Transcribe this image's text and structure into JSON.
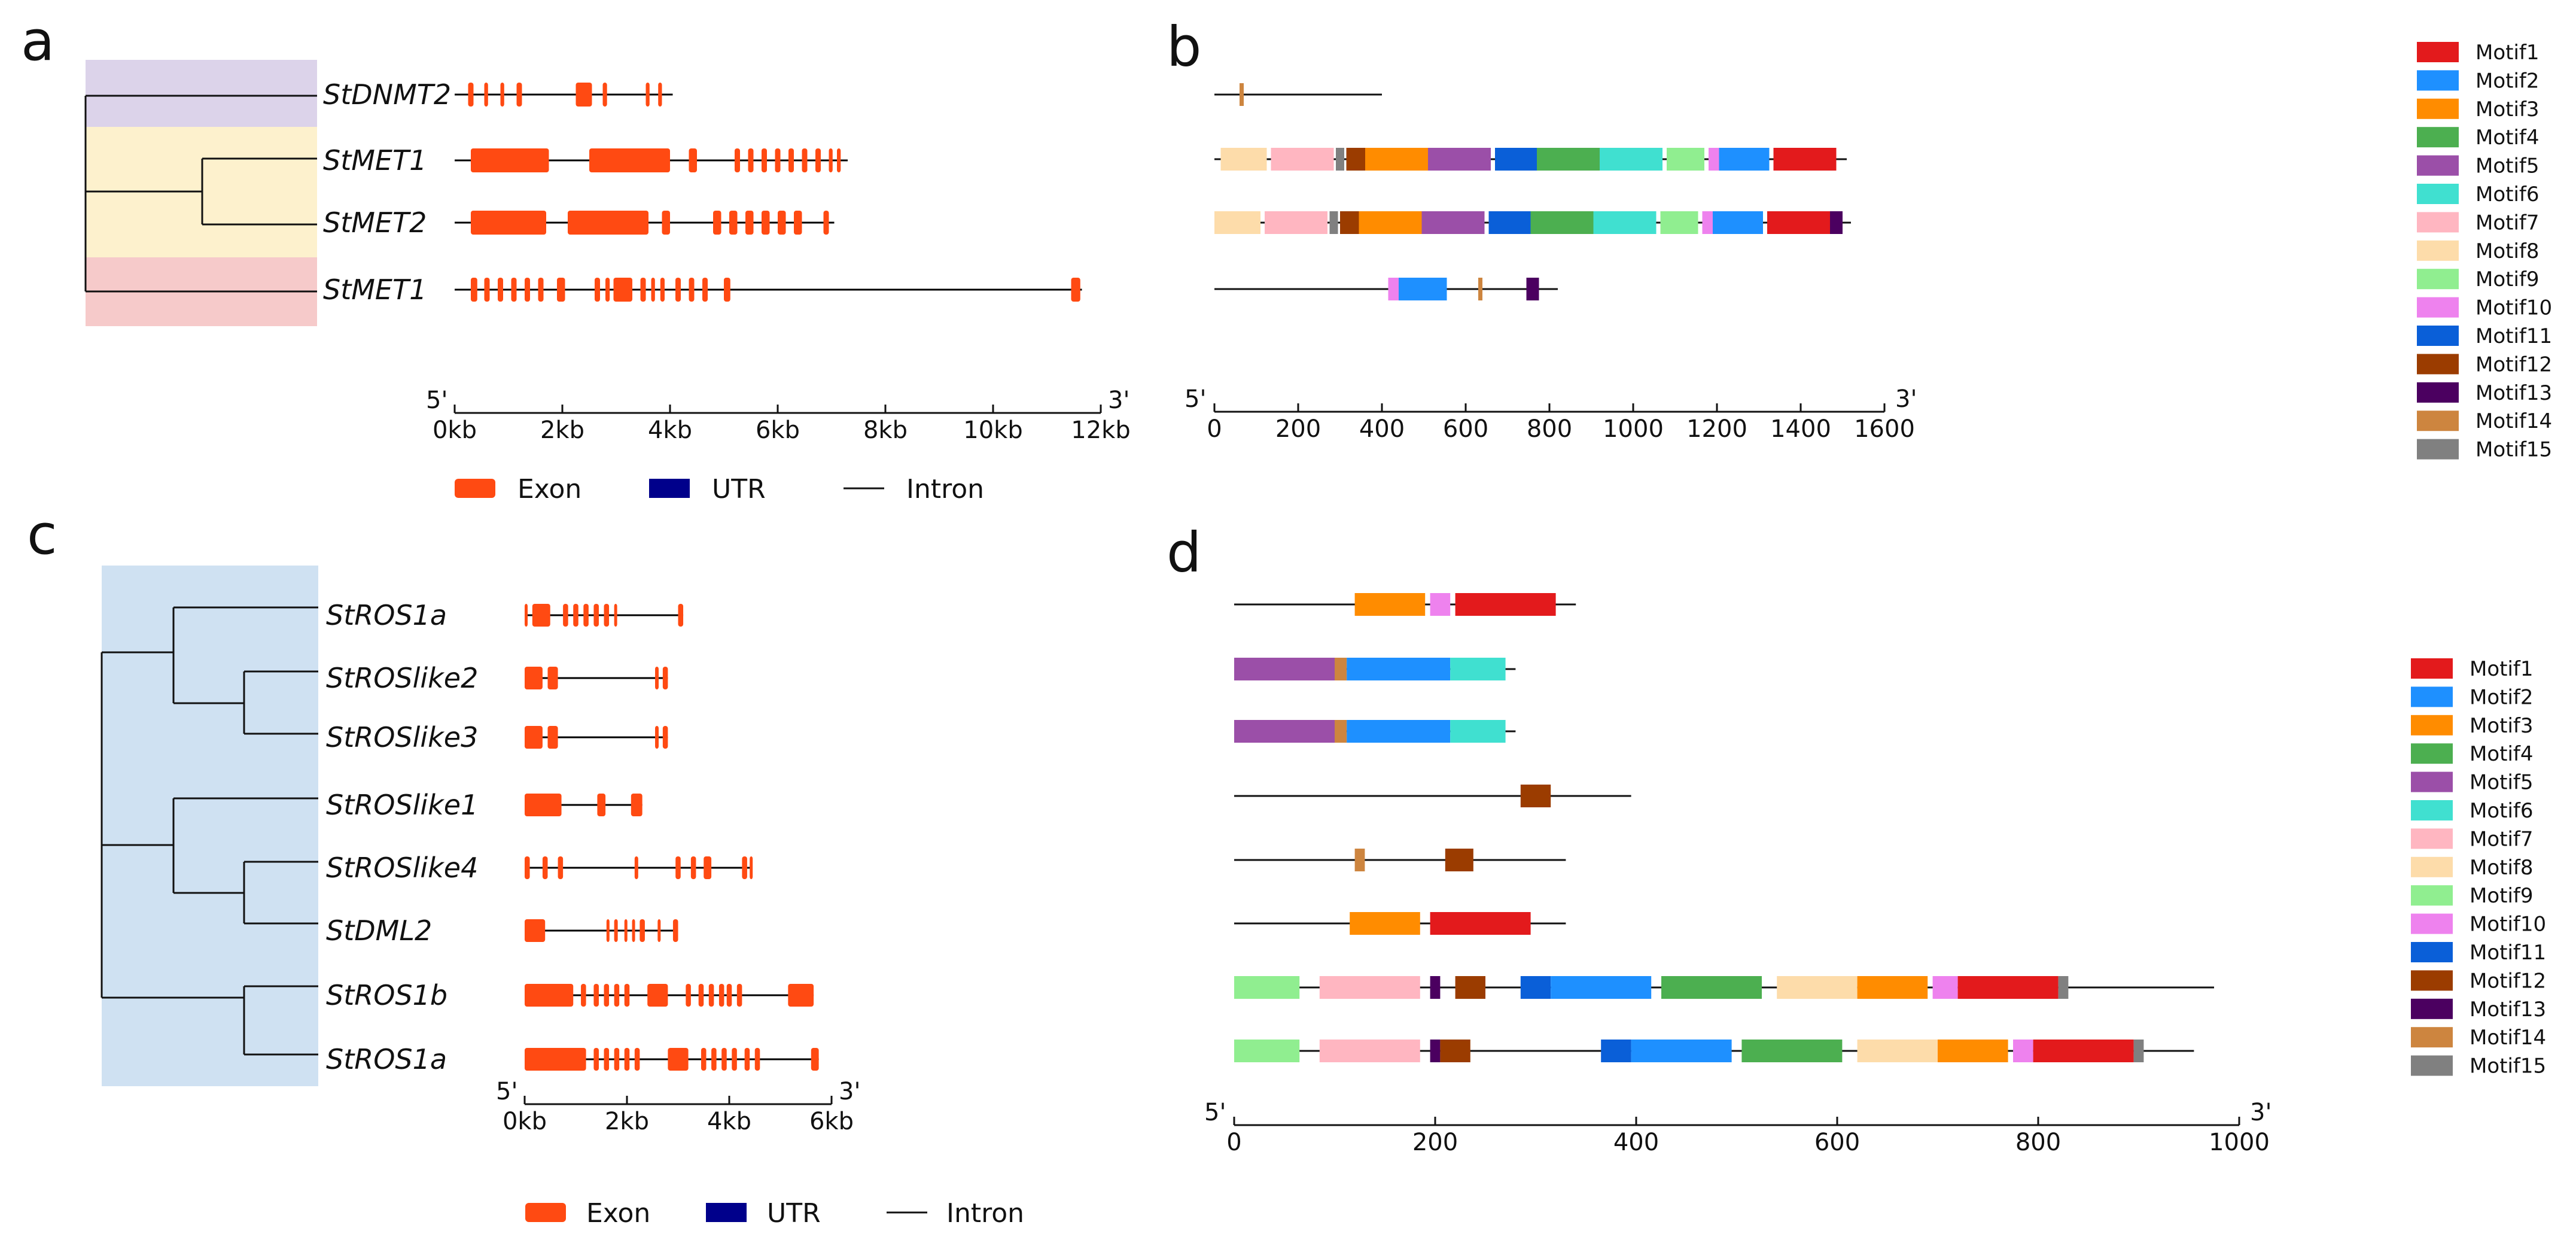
{
  "colors": {
    "exon": "#FF4A12",
    "utr": "#00008B",
    "intron": "#000000",
    "panel_a_band1": "#DCD3EA",
    "panel_a_band2": "#FDF1CD",
    "panel_a_band3": "#F6CACA",
    "panel_c_bg": "#CFE1F2"
  },
  "panel_letters": [
    "a",
    "b",
    "c",
    "d"
  ],
  "motifs": [
    {
      "name": "Motif1",
      "color": "#E31A1C"
    },
    {
      "name": "Motif2",
      "color": "#1E90FF"
    },
    {
      "name": "Motif3",
      "color": "#FF8C00"
    },
    {
      "name": "Motif4",
      "color": "#4CAF50"
    },
    {
      "name": "Motif5",
      "color": "#9B4FA8"
    },
    {
      "name": "Motif6",
      "color": "#40E0D0"
    },
    {
      "name": "Motif7",
      "color": "#FFB6C1"
    },
    {
      "name": "Motif8",
      "color": "#FDDCAA"
    },
    {
      "name": "Motif9",
      "color": "#90EE90"
    },
    {
      "name": "Motif10",
      "color": "#EE82EE"
    },
    {
      "name": "Motif11",
      "color": "#0A5FD8"
    },
    {
      "name": "Motif12",
      "color": "#9B3C00"
    },
    {
      "name": "Motif13",
      "color": "#4B0060"
    },
    {
      "name": "Motif14",
      "color": "#CD853F"
    },
    {
      "name": "Motif15",
      "color": "#808080"
    }
  ],
  "gene_legend": {
    "exon": "Exon",
    "utr": "UTR",
    "intron": "Intron"
  },
  "panel_a": {
    "genes": [
      {
        "name": "StDNMT2",
        "length": 4.05,
        "exons": [
          [
            0.25,
            0.35
          ],
          [
            0.55,
            0.62
          ],
          [
            0.85,
            0.92
          ],
          [
            1.15,
            1.25
          ],
          [
            2.25,
            2.55
          ],
          [
            2.75,
            2.83
          ],
          [
            3.55,
            3.62
          ],
          [
            3.78,
            3.85
          ]
        ]
      },
      {
        "name": "StMET1",
        "length": 7.3,
        "exons": [
          [
            0.3,
            1.75
          ],
          [
            2.5,
            4.0
          ],
          [
            4.35,
            4.5
          ],
          [
            5.2,
            5.3
          ],
          [
            5.45,
            5.55
          ],
          [
            5.7,
            5.8
          ],
          [
            5.95,
            6.05
          ],
          [
            6.2,
            6.3
          ],
          [
            6.45,
            6.55
          ],
          [
            6.7,
            6.8
          ],
          [
            6.95,
            7.02
          ],
          [
            7.1,
            7.17
          ]
        ]
      },
      {
        "name": "StMET2",
        "length": 7.05,
        "exons": [
          [
            0.3,
            1.7
          ],
          [
            2.1,
            3.6
          ],
          [
            3.85,
            4.0
          ],
          [
            4.8,
            4.95
          ],
          [
            5.1,
            5.25
          ],
          [
            5.4,
            5.55
          ],
          [
            5.7,
            5.85
          ],
          [
            6.0,
            6.15
          ],
          [
            6.3,
            6.45
          ],
          [
            6.85,
            6.95
          ]
        ]
      },
      {
        "name": "StMET1",
        "length": 11.65,
        "exons": [
          [
            0.3,
            0.42
          ],
          [
            0.55,
            0.65
          ],
          [
            0.8,
            0.9
          ],
          [
            1.05,
            1.15
          ],
          [
            1.3,
            1.4
          ],
          [
            1.55,
            1.65
          ],
          [
            1.9,
            2.05
          ],
          [
            2.6,
            2.7
          ],
          [
            2.8,
            2.88
          ],
          [
            2.95,
            3.3
          ],
          [
            3.45,
            3.55
          ],
          [
            3.65,
            3.72
          ],
          [
            3.82,
            3.9
          ],
          [
            4.1,
            4.2
          ],
          [
            4.35,
            4.45
          ],
          [
            4.6,
            4.7
          ],
          [
            5.0,
            5.12
          ],
          [
            11.45,
            11.62
          ]
        ]
      }
    ],
    "axis": {
      "start_label": "5'",
      "end_label": "3'",
      "ticks": [
        "0kb",
        "2kb",
        "4kb",
        "6kb",
        "8kb",
        "10kb",
        "12kb"
      ],
      "max": 12
    }
  },
  "panel_b": {
    "proteins": [
      {
        "length": 400,
        "motifs": [
          [
            60,
            70,
            14
          ]
        ]
      },
      {
        "length": 1510,
        "motifs": [
          [
            15,
            125,
            8
          ],
          [
            135,
            285,
            7
          ],
          [
            290,
            310,
            15
          ],
          [
            315,
            360,
            12
          ],
          [
            360,
            510,
            3
          ],
          [
            510,
            660,
            5
          ],
          [
            670,
            770,
            11
          ],
          [
            770,
            920,
            4
          ],
          [
            920,
            1070,
            6
          ],
          [
            1080,
            1170,
            9
          ],
          [
            1180,
            1205,
            10
          ],
          [
            1205,
            1325,
            2
          ],
          [
            1335,
            1485,
            1
          ]
        ]
      },
      {
        "length": 1520,
        "motifs": [
          [
            0,
            110,
            8
          ],
          [
            120,
            270,
            7
          ],
          [
            275,
            295,
            15
          ],
          [
            300,
            345,
            12
          ],
          [
            345,
            495,
            3
          ],
          [
            495,
            645,
            5
          ],
          [
            655,
            755,
            11
          ],
          [
            755,
            905,
            4
          ],
          [
            905,
            1055,
            6
          ],
          [
            1065,
            1155,
            9
          ],
          [
            1165,
            1190,
            10
          ],
          [
            1190,
            1310,
            2
          ],
          [
            1320,
            1470,
            1
          ],
          [
            1470,
            1500,
            13
          ]
        ]
      },
      {
        "length": 820,
        "motifs": [
          [
            415,
            440,
            10
          ],
          [
            440,
            555,
            2
          ],
          [
            630,
            640,
            14
          ],
          [
            745,
            775,
            13
          ]
        ]
      }
    ],
    "axis": {
      "start_label": "5'",
      "end_label": "3'",
      "ticks": [
        0,
        200,
        400,
        600,
        800,
        1000,
        1200,
        1400,
        1600
      ],
      "max": 1600
    }
  },
  "panel_c": {
    "genes": [
      {
        "name": "StROS1a",
        "length": 3.1,
        "exons": [
          [
            0.0,
            0.05
          ],
          [
            0.15,
            0.5
          ],
          [
            0.75,
            0.85
          ],
          [
            0.95,
            1.05
          ],
          [
            1.15,
            1.25
          ],
          [
            1.35,
            1.45
          ],
          [
            1.55,
            1.65
          ],
          [
            1.75,
            1.8
          ],
          [
            3.0,
            3.1
          ]
        ]
      },
      {
        "name": "StROSlike2",
        "length": 2.8,
        "exons": [
          [
            0.0,
            0.35
          ],
          [
            0.45,
            0.65
          ],
          [
            2.55,
            2.62
          ],
          [
            2.7,
            2.8
          ]
        ]
      },
      {
        "name": "StROSlike3",
        "length": 2.8,
        "exons": [
          [
            0.0,
            0.35
          ],
          [
            0.45,
            0.65
          ],
          [
            2.55,
            2.62
          ],
          [
            2.7,
            2.8
          ]
        ]
      },
      {
        "name": "StROSlike1",
        "length": 2.3,
        "exons": [
          [
            0.0,
            0.72
          ],
          [
            1.42,
            1.58
          ],
          [
            2.08,
            2.3
          ]
        ]
      },
      {
        "name": "StROSlike4",
        "length": 4.45,
        "exons": [
          [
            0.0,
            0.1
          ],
          [
            0.35,
            0.45
          ],
          [
            0.65,
            0.75
          ],
          [
            2.15,
            2.22
          ],
          [
            2.95,
            3.05
          ],
          [
            3.25,
            3.35
          ],
          [
            3.5,
            3.65
          ],
          [
            4.25,
            4.35
          ],
          [
            4.4,
            4.45
          ]
        ]
      },
      {
        "name": "StDML2",
        "length": 3.0,
        "exons": [
          [
            0.0,
            0.4
          ],
          [
            1.6,
            1.65
          ],
          [
            1.75,
            1.82
          ],
          [
            1.95,
            2.0
          ],
          [
            2.1,
            2.15
          ],
          [
            2.25,
            2.35
          ],
          [
            2.6,
            2.65
          ],
          [
            2.9,
            3.0
          ]
        ]
      },
      {
        "name": "StROS1b",
        "length": 5.65,
        "exons": [
          [
            0.0,
            0.95
          ],
          [
            1.1,
            1.2
          ],
          [
            1.35,
            1.45
          ],
          [
            1.55,
            1.65
          ],
          [
            1.75,
            1.85
          ],
          [
            1.95,
            2.05
          ],
          [
            2.4,
            2.8
          ],
          [
            3.15,
            3.25
          ],
          [
            3.4,
            3.5
          ],
          [
            3.6,
            3.7
          ],
          [
            3.8,
            3.9
          ],
          [
            3.95,
            4.05
          ],
          [
            4.15,
            4.25
          ],
          [
            5.15,
            5.65
          ]
        ]
      },
      {
        "name": "StROS1a",
        "length": 5.75,
        "exons": [
          [
            0.0,
            1.2
          ],
          [
            1.35,
            1.45
          ],
          [
            1.55,
            1.65
          ],
          [
            1.75,
            1.85
          ],
          [
            1.95,
            2.05
          ],
          [
            2.15,
            2.25
          ],
          [
            2.8,
            3.2
          ],
          [
            3.45,
            3.55
          ],
          [
            3.65,
            3.75
          ],
          [
            3.85,
            3.95
          ],
          [
            4.05,
            4.15
          ],
          [
            4.3,
            4.4
          ],
          [
            4.5,
            4.6
          ],
          [
            5.6,
            5.75
          ]
        ]
      }
    ],
    "axis": {
      "start_label": "5'",
      "end_label": "3'",
      "ticks": [
        "0kb",
        "2kb",
        "4kb",
        "6kb"
      ],
      "max": 6
    }
  },
  "panel_d": {
    "proteins": [
      {
        "length": 340,
        "motifs": [
          [
            120,
            190,
            3
          ],
          [
            195,
            215,
            10
          ],
          [
            220,
            320,
            1
          ]
        ]
      },
      {
        "length": 280,
        "motifs": [
          [
            0,
            100,
            5
          ],
          [
            100,
            112,
            14
          ],
          [
            112,
            215,
            2
          ],
          [
            215,
            270,
            6
          ]
        ]
      },
      {
        "length": 280,
        "motifs": [
          [
            0,
            100,
            5
          ],
          [
            100,
            112,
            14
          ],
          [
            112,
            215,
            2
          ],
          [
            215,
            270,
            6
          ]
        ]
      },
      {
        "length": 395,
        "motifs": [
          [
            285,
            315,
            12
          ]
        ]
      },
      {
        "length": 330,
        "motifs": [
          [
            120,
            130,
            14
          ],
          [
            210,
            238,
            12
          ]
        ]
      },
      {
        "length": 330,
        "motifs": [
          [
            115,
            185,
            3
          ],
          [
            195,
            295,
            1
          ]
        ]
      },
      {
        "length": 975,
        "motifs": [
          [
            0,
            65,
            9
          ],
          [
            85,
            185,
            7
          ],
          [
            195,
            205,
            13
          ],
          [
            220,
            250,
            12
          ],
          [
            285,
            315,
            11
          ],
          [
            315,
            415,
            2
          ],
          [
            425,
            525,
            4
          ],
          [
            540,
            620,
            8
          ],
          [
            620,
            690,
            3
          ],
          [
            695,
            720,
            10
          ],
          [
            720,
            820,
            1
          ],
          [
            820,
            830,
            15
          ]
        ]
      },
      {
        "length": 955,
        "motifs": [
          [
            0,
            65,
            9
          ],
          [
            85,
            185,
            7
          ],
          [
            195,
            205,
            13
          ],
          [
            205,
            235,
            12
          ],
          [
            365,
            395,
            11
          ],
          [
            395,
            495,
            2
          ],
          [
            505,
            605,
            4
          ],
          [
            620,
            700,
            8
          ],
          [
            700,
            770,
            3
          ],
          [
            775,
            795,
            10
          ],
          [
            795,
            895,
            1
          ],
          [
            895,
            905,
            15
          ]
        ]
      }
    ],
    "axis": {
      "start_label": "5'",
      "end_label": "3'",
      "ticks": [
        0,
        200,
        400,
        600,
        800,
        1000
      ],
      "max": 1000
    }
  }
}
